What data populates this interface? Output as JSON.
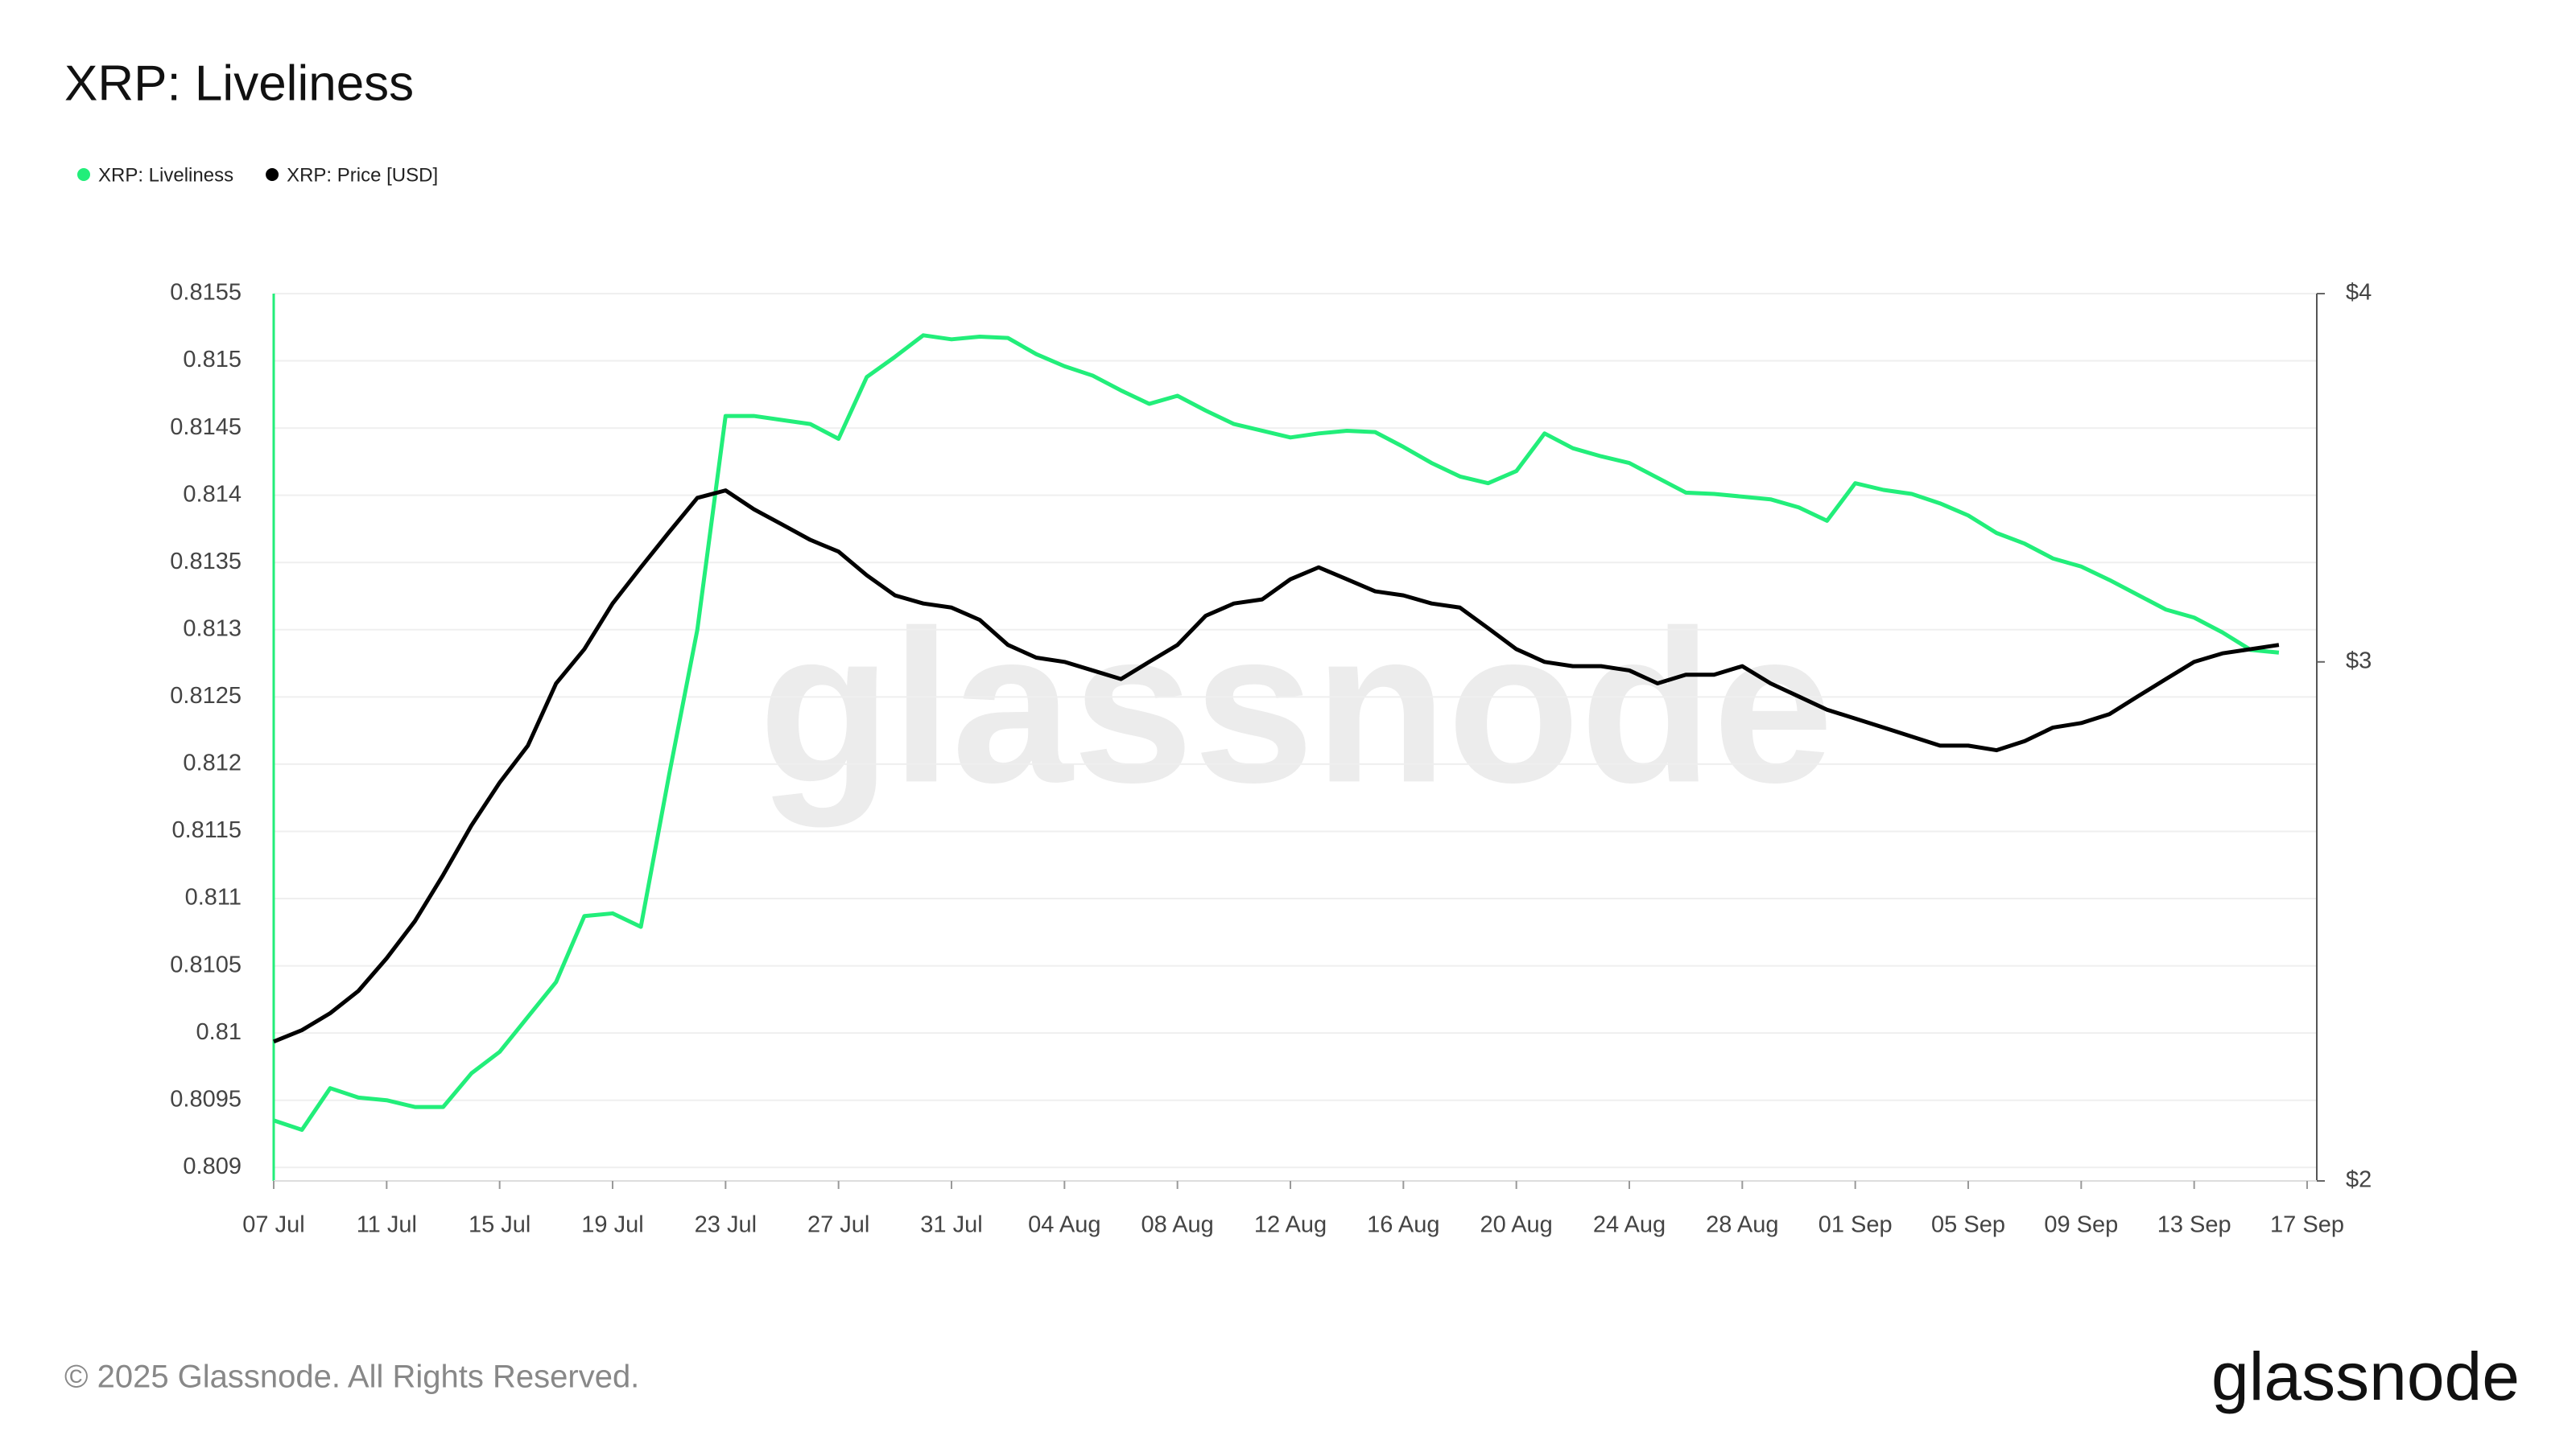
{
  "chart_data": {
    "type": "line",
    "title": "XRP: Liveliness",
    "watermark": "glassnode",
    "footer": "© 2025 Glassnode. All Rights Reserved.",
    "logo": "glassnode",
    "legend": "top-left",
    "grid": true,
    "x": [
      "07 Jul",
      null,
      null,
      null,
      "11 Jul",
      null,
      null,
      null,
      "15 Jul",
      null,
      null,
      null,
      "19 Jul",
      null,
      null,
      null,
      "23 Jul",
      null,
      null,
      null,
      "27 Jul",
      null,
      null,
      null,
      "31 Jul",
      null,
      null,
      null,
      "04 Aug",
      null,
      null,
      null,
      "08 Aug",
      null,
      null,
      null,
      "12 Aug",
      null,
      null,
      null,
      "16 Aug",
      null,
      null,
      null,
      "20 Aug",
      null,
      null,
      null,
      "24 Aug",
      null,
      null,
      null,
      "28 Aug",
      null,
      null,
      null,
      "01 Sep",
      null,
      null,
      null,
      "05 Sep",
      null,
      null,
      null,
      "09 Sep",
      null,
      null,
      null,
      "13 Sep",
      null,
      null,
      null,
      "17 Sep"
    ],
    "ylim": [
      0.8089,
      0.8155
    ],
    "yticks": [
      0.809,
      0.8095,
      0.81,
      0.8105,
      0.811,
      0.8115,
      0.812,
      0.8125,
      0.813,
      0.8135,
      0.814,
      0.8145,
      0.815,
      0.8155
    ],
    "y2lim": [
      2,
      4
    ],
    "y2scale": "log",
    "y2ticks": [
      {
        "value": 2,
        "label": "$2"
      },
      {
        "value": 3,
        "label": "$3"
      },
      {
        "value": 4,
        "label": "$4"
      }
    ],
    "series": [
      {
        "name": "XRP: Liveliness",
        "color": "#22ee7a",
        "values": [
          0.80935,
          0.80928,
          0.80959,
          0.80952,
          0.8095,
          0.80945,
          0.80945,
          0.8097,
          0.80986,
          0.81012,
          0.81038,
          0.81087,
          0.81089,
          0.81079,
          0.81192,
          0.813,
          0.81459,
          0.81459,
          0.81456,
          0.81453,
          0.81442,
          0.81488,
          0.81503,
          0.81519,
          0.81516,
          0.81518,
          0.81517,
          0.81505,
          0.81496,
          0.81489,
          0.81478,
          0.81468,
          0.81474,
          0.81463,
          0.81453,
          0.81448,
          0.81443,
          0.81446,
          0.81448,
          0.81447,
          0.81436,
          0.81424,
          0.81414,
          0.81409,
          0.81418,
          0.81446,
          0.81435,
          0.81429,
          0.81424,
          0.81413,
          0.81402,
          0.81401,
          0.81399,
          0.81397,
          0.81391,
          0.81381,
          0.81409,
          0.81404,
          0.81401,
          0.81394,
          0.81385,
          0.81372,
          0.81364,
          0.81353,
          0.81347,
          0.81337,
          0.81326,
          0.81315,
          0.81309,
          0.81298,
          0.81285,
          0.81283,
          null
        ]
      },
      {
        "name": "XRP: Price [USD]",
        "color": "#000000",
        "axis": "y2",
        "values": [
          2.23,
          2.25,
          2.28,
          2.32,
          2.38,
          2.45,
          2.54,
          2.64,
          2.73,
          2.81,
          2.95,
          3.03,
          3.14,
          3.23,
          3.32,
          3.41,
          3.43,
          3.38,
          3.34,
          3.3,
          3.27,
          3.21,
          3.16,
          3.14,
          3.13,
          3.1,
          3.04,
          3.01,
          3.0,
          2.98,
          2.96,
          3.0,
          3.04,
          3.11,
          3.14,
          3.15,
          3.2,
          3.23,
          3.2,
          3.17,
          3.16,
          3.14,
          3.13,
          3.08,
          3.03,
          3.0,
          2.99,
          2.99,
          2.98,
          2.95,
          2.97,
          2.97,
          2.99,
          2.95,
          2.92,
          2.89,
          2.87,
          2.85,
          2.83,
          2.81,
          2.81,
          2.8,
          2.82,
          2.85,
          2.86,
          2.88,
          2.92,
          2.96,
          3.0,
          3.02,
          3.03,
          3.04,
          null
        ]
      }
    ]
  }
}
